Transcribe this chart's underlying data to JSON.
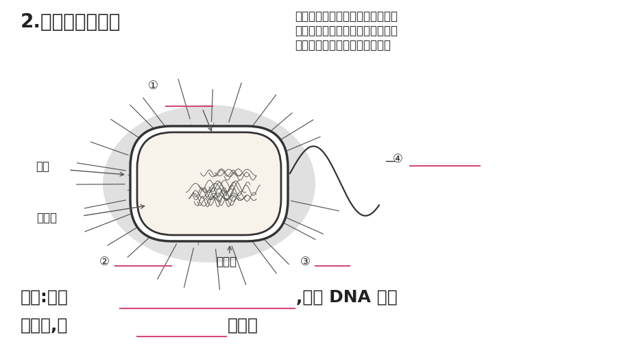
{
  "bg_color": "#ffffff",
  "title": "2.细菌的基本结构",
  "note_text": "鞭毛和荚膜是特殊结构，有的细菌\n有，有的细菌没有。鞭毛有助于细\n菌游动，荚膜对细菌有保护作用",
  "label_juenmao": "菌毛",
  "label_xibaozhi": "细胞质",
  "label_xibaobi": "细胞壁",
  "label_1": "①",
  "label_2": "②",
  "label_3": "③",
  "label_4": "④",
  "pink": "#d4487a",
  "dark": "#222222",
  "gray_capsule": "#c0c0c0",
  "bottom_line1a": "特点:没有",
  "bottom_line1b": ",只有 DNA 集中",
  "bottom_line2a": "的区域,是",
  "bottom_line2b": "生物。"
}
